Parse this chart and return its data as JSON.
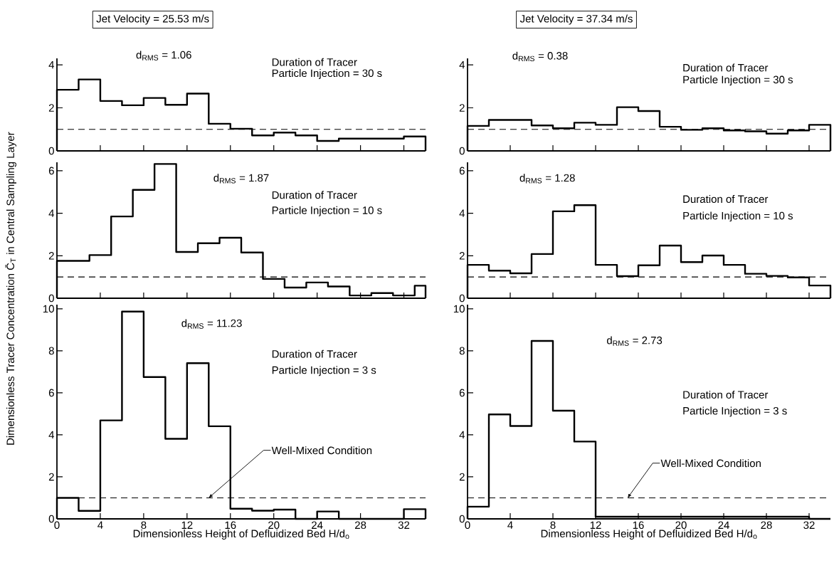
{
  "chart_data": [
    {
      "type": "histogram",
      "title": "Jet Velocity = 25.53 m/s",
      "color": "#000000",
      "tick_labels": "y",
      "xlim": [
        0,
        34
      ],
      "ylim": [
        0,
        4.3
      ],
      "xticks": [
        0,
        4,
        8,
        12,
        16,
        20,
        24,
        28,
        32
      ],
      "yticks": [
        0,
        2,
        4
      ],
      "bins": [
        0,
        2,
        4,
        6,
        8,
        10,
        12,
        14,
        16,
        18,
        20,
        22,
        24,
        26,
        28,
        30,
        32,
        34
      ],
      "values": [
        2.84,
        3.32,
        2.32,
        2.12,
        2.46,
        2.14,
        2.66,
        1.26,
        1.03,
        0.72,
        0.85,
        0.72,
        0.46,
        0.57,
        0.57,
        0.57,
        0.67
      ],
      "ref_lines": [
        {
          "axis": "y",
          "value": 1,
          "line_style": "dashed"
        }
      ],
      "annotations": [
        "d$_{RMS}$ = 1.06",
        "Duration of Tracer",
        "Particle Injection = 30 s"
      ]
    },
    {
      "type": "histogram",
      "title": "Jet Velocity = 37.34 m/s",
      "color": "#000000",
      "tick_labels": "y",
      "xlim": [
        0,
        34
      ],
      "ylim": [
        0,
        4.3
      ],
      "xticks": [
        0,
        4,
        8,
        12,
        16,
        20,
        24,
        28,
        32
      ],
      "yticks": [
        0,
        2,
        4
      ],
      "bins": [
        0,
        2,
        4,
        6,
        8,
        10,
        12,
        14,
        16,
        18,
        20,
        22,
        24,
        26,
        28,
        30,
        32,
        34
      ],
      "values": [
        1.16,
        1.44,
        1.44,
        1.18,
        1.05,
        1.31,
        1.21,
        2.03,
        1.85,
        1.12,
        0.98,
        1.05,
        0.95,
        0.91,
        0.8,
        0.95,
        1.21
      ],
      "ref_lines": [
        {
          "axis": "y",
          "value": 1,
          "line_style": "dashed"
        }
      ],
      "annotations": [
        "d$_{RMS}$ = 0.38",
        "Duration of Tracer",
        "Particle Injection = 30 s"
      ]
    },
    {
      "type": "histogram",
      "ylabel": "Dimensionless Tracer Concentration C̄$_{T}$ in Central Sampling Layer",
      "color": "#000000",
      "tick_labels": "y",
      "xlim": [
        0,
        34
      ],
      "ylim": [
        0,
        6.4
      ],
      "xticks": [
        0,
        4,
        8,
        12,
        16,
        20,
        24,
        28,
        32
      ],
      "yticks": [
        0,
        2,
        4,
        6
      ],
      "bins": [
        0,
        3,
        5,
        7,
        9,
        11,
        13,
        15,
        17,
        19,
        21,
        23,
        25,
        27,
        29,
        31,
        33,
        34
      ],
      "values": [
        1.76,
        2.03,
        3.85,
        5.1,
        6.32,
        2.18,
        2.59,
        2.85,
        2.15,
        0.91,
        0.5,
        0.74,
        0.55,
        0.13,
        0.24,
        0.13,
        0.59
      ],
      "ref_lines": [
        {
          "axis": "y",
          "value": 1,
          "line_style": "dashed"
        }
      ],
      "annotations": [
        "d$_{RMS}$ = 1.87",
        "Duration of Tracer",
        "Particle Injection = 10 s"
      ]
    },
    {
      "type": "histogram",
      "color": "#000000",
      "tick_labels": "y",
      "xlim": [
        0,
        34
      ],
      "ylim": [
        0,
        6.4
      ],
      "xticks": [
        0,
        4,
        8,
        12,
        16,
        20,
        24,
        28,
        32
      ],
      "yticks": [
        0,
        2,
        4,
        6
      ],
      "bins": [
        0,
        2,
        4,
        6,
        8,
        10,
        12,
        14,
        16,
        18,
        20,
        22,
        24,
        26,
        28,
        30,
        32,
        34
      ],
      "values": [
        1.57,
        1.3,
        1.17,
        2.08,
        4.09,
        4.38,
        1.57,
        1.04,
        1.55,
        2.48,
        1.7,
        2.01,
        1.57,
        1.15,
        1.05,
        0.98,
        0.6
      ],
      "ref_lines": [
        {
          "axis": "y",
          "value": 1,
          "line_style": "dashed"
        }
      ],
      "annotations": [
        "d$_{RMS}$ = 1.28",
        "Duration of Tracer",
        "Particle Injection = 10 s"
      ]
    },
    {
      "type": "histogram",
      "xlabel": "Dimensionless Height of Defluidized Bed H/d$_{o}$",
      "color": "#000000",
      "xlim": [
        0,
        34
      ],
      "ylim": [
        0,
        10.2
      ],
      "xticks": [
        0,
        4,
        8,
        12,
        16,
        20,
        24,
        28,
        32
      ],
      "yticks": [
        0,
        2,
        4,
        6,
        8,
        10
      ],
      "bins": [
        0,
        2,
        4,
        6,
        8,
        10,
        12,
        14,
        16,
        18,
        20,
        22,
        24,
        26,
        28,
        30,
        32,
        34
      ],
      "values": [
        1.0,
        0.38,
        4.69,
        9.87,
        6.75,
        3.81,
        7.41,
        4.41,
        0.48,
        0.39,
        0.44,
        0,
        0.35,
        0,
        0,
        0,
        0.46
      ],
      "ref_lines": [
        {
          "axis": "y",
          "value": 1,
          "line_style": "dashed",
          "label": "Well-Mixed Condition"
        }
      ],
      "annotations": [
        "d$_{RMS}$ = 11.23",
        "Duration of Tracer",
        "Particle Injection = 3 s"
      ]
    },
    {
      "type": "histogram",
      "xlabel": "Dimensionless Height of Defluidized Bed H/d$_{o}$",
      "color": "#000000",
      "xlim": [
        0,
        34
      ],
      "ylim": [
        0,
        10.2
      ],
      "xticks": [
        0,
        4,
        8,
        12,
        16,
        20,
        24,
        28,
        32
      ],
      "yticks": [
        0,
        2,
        4,
        6,
        8,
        10
      ],
      "bins": [
        0,
        2,
        4,
        6,
        8,
        10,
        12,
        14,
        16,
        18,
        20,
        22,
        24,
        26,
        28,
        30,
        32,
        34
      ],
      "values": [
        0.58,
        4.97,
        4.42,
        8.47,
        5.15,
        3.68,
        0.1,
        0.1,
        0.1,
        0.1,
        0.1,
        0.1,
        0.1,
        0.1,
        0.1,
        0.1,
        0
      ],
      "ref_lines": [
        {
          "axis": "y",
          "value": 1,
          "line_style": "dashed",
          "label": "Well-Mixed Condition"
        }
      ],
      "annotations": [
        "d$_{RMS}$ = 2.73",
        "Duration of Tracer",
        "Particle Injection = 3 s"
      ]
    }
  ]
}
